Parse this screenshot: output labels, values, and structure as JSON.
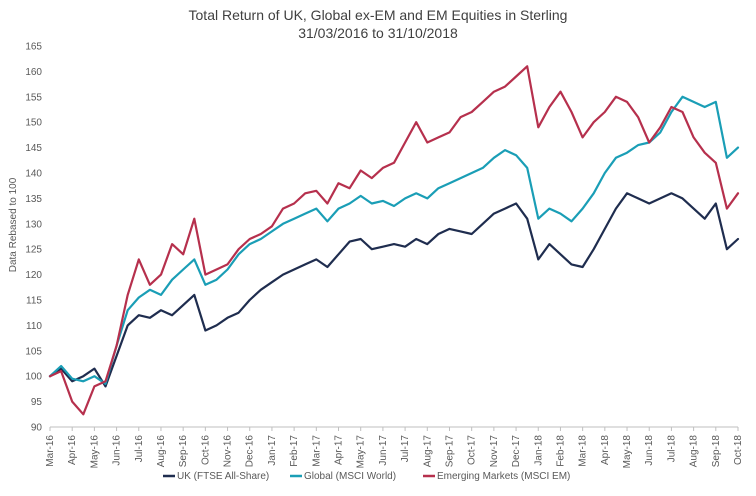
{
  "chart_data": {
    "type": "line",
    "title": "Total Return of UK, Global ex-EM and EM Equities in Sterling",
    "subtitle": "31/03/2016 to 31/10/2018",
    "xlabel": "",
    "ylabel": "Data Rebased to 100",
    "ylim": [
      90,
      165
    ],
    "yticks": [
      90,
      95,
      100,
      105,
      110,
      115,
      120,
      125,
      130,
      135,
      140,
      145,
      150,
      155,
      160,
      165
    ],
    "grid": false,
    "legend_position": "bottom",
    "x_ticks": [
      "Mar-16",
      "Apr-16",
      "May-16",
      "Jun-16",
      "Jul-16",
      "Aug-16",
      "Sep-16",
      "Oct-16",
      "Nov-16",
      "Dec-16",
      "Jan-17",
      "Feb-17",
      "Mar-17",
      "Apr-17",
      "May-17",
      "Jun-17",
      "Jul-17",
      "Aug-17",
      "Sep-17",
      "Oct-17",
      "Nov-17",
      "Dec-17",
      "Jan-18",
      "Feb-18",
      "Mar-18",
      "Apr-18",
      "May-18",
      "Jun-18",
      "Jul-18",
      "Aug-18",
      "Sep-18",
      "Oct-18"
    ],
    "x": [
      "Mar-16",
      "Apr-16",
      "Apr-16",
      "May-16",
      "May-16",
      "Jun-16",
      "Jun-16",
      "Jul-16",
      "Jul-16",
      "Aug-16",
      "Aug-16",
      "Sep-16",
      "Sep-16",
      "Oct-16",
      "Oct-16",
      "Nov-16",
      "Nov-16",
      "Dec-16",
      "Dec-16",
      "Jan-17",
      "Jan-17",
      "Feb-17",
      "Feb-17",
      "Mar-17",
      "Mar-17",
      "Apr-17",
      "Apr-17",
      "May-17",
      "May-17",
      "Jun-17",
      "Jun-17",
      "Jul-17",
      "Jul-17",
      "Aug-17",
      "Aug-17",
      "Sep-17",
      "Sep-17",
      "Oct-17",
      "Oct-17",
      "Nov-17",
      "Nov-17",
      "Dec-17",
      "Dec-17",
      "Jan-18",
      "Jan-18",
      "Feb-18",
      "Feb-18",
      "Mar-18",
      "Mar-18",
      "Apr-18",
      "Apr-18",
      "May-18",
      "May-18",
      "Jun-18",
      "Jun-18",
      "Jul-18",
      "Jul-18",
      "Aug-18",
      "Aug-18",
      "Sep-18",
      "Sep-18",
      "Oct-18",
      "Oct-18"
    ],
    "series": [
      {
        "name": "UK (FTSE All-Share)",
        "color": "#1f2d4f",
        "values": [
          100,
          101.5,
          99,
          100,
          101.5,
          98,
          104,
          110,
          112,
          111.5,
          113,
          112,
          114,
          116,
          109,
          110,
          111.5,
          112.5,
          115,
          117,
          118.5,
          120,
          121,
          122,
          123,
          121.5,
          124,
          126.5,
          127,
          125,
          125.5,
          126,
          125.5,
          127,
          126,
          128,
          129,
          128.5,
          128,
          130,
          132,
          133,
          134,
          131,
          123,
          126,
          124,
          122,
          121.5,
          125,
          129,
          133,
          136,
          135,
          134,
          135,
          136,
          135,
          133,
          131,
          134,
          125,
          127
        ]
      },
      {
        "name": "Global (MSCI World)",
        "color": "#1a9eb6",
        "values": [
          100,
          102,
          99.5,
          99,
          100,
          98.5,
          106,
          113,
          115.5,
          117,
          116,
          119,
          121,
          123,
          118,
          119,
          121,
          124,
          126,
          127,
          128.5,
          130,
          131,
          132,
          133,
          130.5,
          133,
          134,
          135.5,
          134,
          134.5,
          133.5,
          135,
          136,
          135,
          137,
          138,
          139,
          140,
          141,
          143,
          144.5,
          143.5,
          141,
          131,
          133,
          132,
          130.5,
          133,
          136,
          140,
          143,
          144,
          145.5,
          146,
          148,
          152,
          155,
          154,
          153,
          154,
          143,
          145
        ]
      },
      {
        "name": "Emerging Markets (MSCI EM)",
        "color": "#b6304d",
        "values": [
          100,
          101,
          95,
          92.5,
          98,
          99,
          106,
          116,
          123,
          118,
          120,
          126,
          124,
          131,
          120,
          121,
          122,
          125,
          127,
          128,
          129.5,
          133,
          134,
          136,
          136.5,
          134,
          138,
          137,
          140.5,
          139,
          141,
          142,
          146,
          150,
          146,
          147,
          148,
          151,
          152,
          154,
          156,
          157,
          159,
          161,
          149,
          153,
          156,
          152,
          147,
          150,
          152,
          155,
          154,
          151,
          146,
          149,
          153,
          152,
          147,
          144,
          142,
          133,
          136
        ]
      }
    ]
  }
}
